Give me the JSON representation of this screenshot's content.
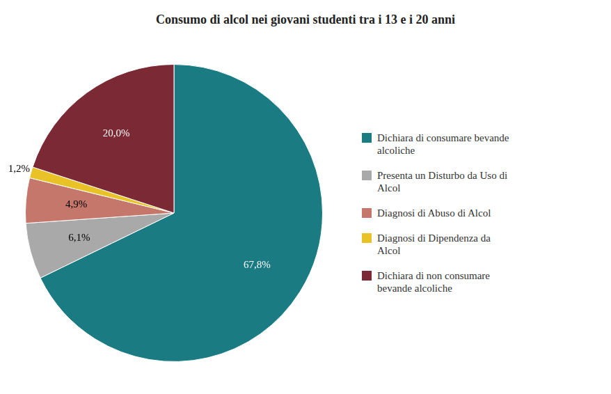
{
  "chart_data": {
    "type": "pie",
    "title": "Consumo di alcol nei giovani studenti tra i 13 e i 20 anni",
    "categories": [
      "Dichiara di consumare bevande\nalcoliche",
      "Presenta un Disturbo da Uso di\nAlcol",
      "Diagnosi di Abuso di Alcol",
      "Diagnosi di Dipendenza da\nAlcol",
      "Dichiara di non consumare\nbevande alcoliche"
    ],
    "values": [
      67.8,
      6.1,
      4.9,
      1.2,
      20.0
    ],
    "value_labels": [
      "67,8%",
      "6,1%",
      "4,9%",
      "1,2%",
      "20,0%"
    ],
    "colors": [
      "#1a7b82",
      "#a9a9a9",
      "#c4776a",
      "#e8c227",
      "#7b2a35"
    ],
    "data_labels": true,
    "legend": "right"
  }
}
